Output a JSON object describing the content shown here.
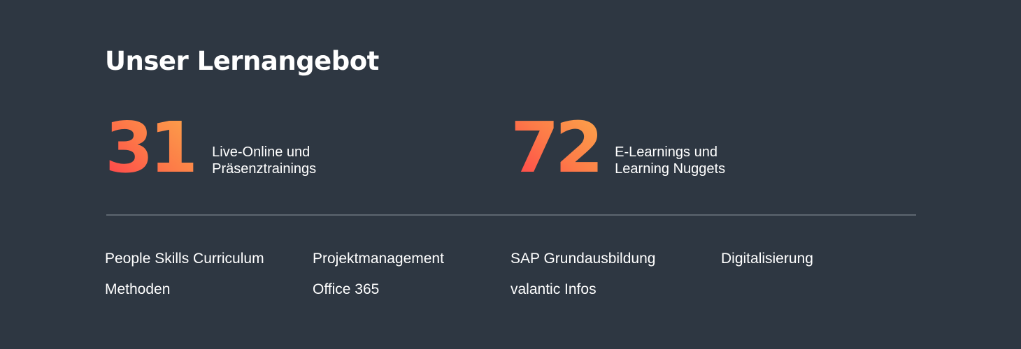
{
  "title": "Unser Lernangebot",
  "stats": [
    {
      "value": "31",
      "line1": "Live-Online und",
      "line2": "Präsenztrainings"
    },
    {
      "value": "72",
      "line1": "E-Learnings und",
      "line2": "Learning Nuggets"
    }
  ],
  "categories": [
    "People Skills Curriculum",
    "Projektmanagement",
    "SAP Grundausbildung",
    "Digitalisierung",
    "Methoden",
    "Office 365",
    "valantic Infos"
  ],
  "colors": {
    "background": "#2e3742",
    "gradient_start": "#ff3f4b",
    "gradient_end": "#fba64a",
    "divider": "#5d6670"
  }
}
